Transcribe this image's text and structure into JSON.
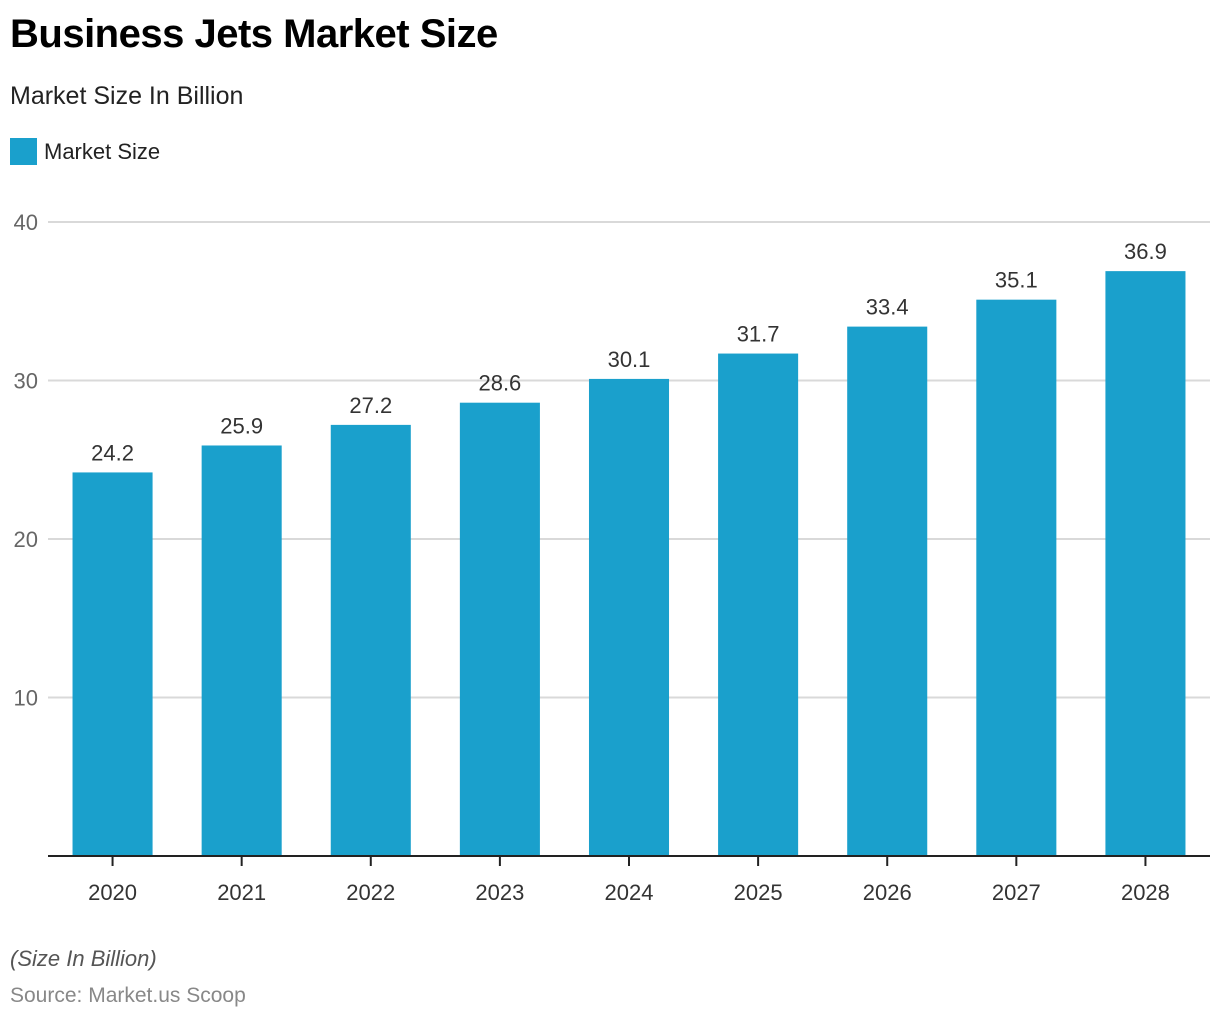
{
  "header": {
    "title": "Business Jets Market Size",
    "subtitle": "Market Size In Billion"
  },
  "legend": {
    "label": "Market Size",
    "color": "#1aa0cc"
  },
  "footer": {
    "note": "(Size In Billion)",
    "source": "Source: Market.us Scoop"
  },
  "chart_data": {
    "type": "bar",
    "title": "Business Jets Market Size",
    "subtitle": "Market Size In Billion",
    "xlabel": "",
    "ylabel": "",
    "categories": [
      "2020",
      "2021",
      "2022",
      "2023",
      "2024",
      "2025",
      "2026",
      "2027",
      "2028"
    ],
    "series": [
      {
        "name": "Market Size",
        "color": "#1aa0cc",
        "values": [
          24.2,
          25.9,
          27.2,
          28.6,
          30.1,
          31.7,
          33.4,
          35.1,
          36.9
        ]
      }
    ],
    "data_labels": [
      "24.2",
      "25.9",
      "27.2",
      "28.6",
      "30.1",
      "31.7",
      "33.4",
      "35.1",
      "36.9"
    ],
    "ylim": [
      0,
      40
    ],
    "yticks": [
      10,
      20,
      30,
      40
    ],
    "grid": true,
    "legend_position": "top-left"
  }
}
